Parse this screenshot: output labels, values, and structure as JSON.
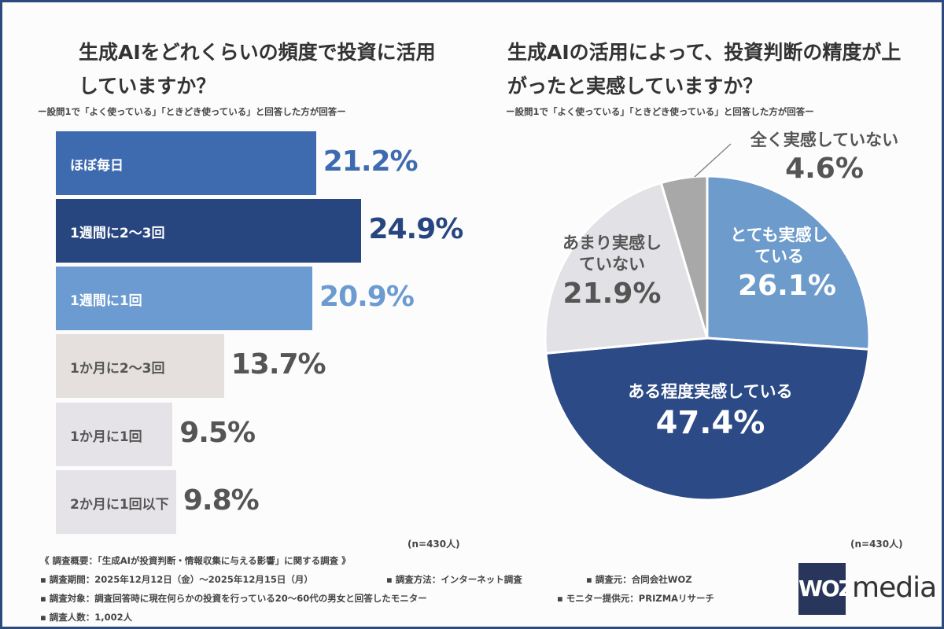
{
  "chart_data": [
    {
      "type": "bar",
      "orientation": "horizontal",
      "title": "生成AIをどれくらいの頻度で投資に活用していますか？",
      "subtitle": "ー設問1で「よく使っている」「ときどき使っている」と回答した方が回答ー",
      "categories": [
        "ほぼ毎日",
        "1週間に2〜3回",
        "1週間に1回",
        "1か月に2〜3回",
        "1か月に1回",
        "2か月に1回以下"
      ],
      "values": [
        21.2,
        24.9,
        20.9,
        13.7,
        9.5,
        9.8
      ],
      "value_labels": [
        "21.2%",
        "24.9%",
        "20.9%",
        "13.7%",
        "9.5%",
        "9.8%"
      ],
      "colors": [
        "#3e6bb0",
        "#27457f",
        "#6b9bd0",
        "#e5e0de",
        "#e6e3e8",
        "#e6e3e8"
      ],
      "label_colors": [
        "#ffffff",
        "#ffffff",
        "#ffffff",
        "#555555",
        "#555555",
        "#555555"
      ],
      "value_colors": [
        "#3e6bb0",
        "#27457f",
        "#6b9bd0",
        "#555555",
        "#555555",
        "#555555"
      ],
      "note": "(n=430人)"
    },
    {
      "type": "pie",
      "title": "生成AIの活用によって、投資判断の精度が上がったと実感していますか？",
      "subtitle": "ー設問1で「よく使っている」「ときどき使っている」と回答した方が回答ー",
      "categories": [
        "とても実感している",
        "ある程度実感している",
        "あまり実感していない",
        "全く実感していない"
      ],
      "values": [
        26.1,
        47.4,
        21.9,
        4.6
      ],
      "value_labels": [
        "26.1%",
        "47.4%",
        "21.9%",
        "4.6%"
      ],
      "colors": [
        "#6d9bcb",
        "#2c4a86",
        "#e2e2e6",
        "#a9a8a8"
      ],
      "note": "(n=430人)"
    }
  ],
  "footer": {
    "summary": "《 調査概要：「生成AIが投資判断・情報収集に与える影響」に関する調査 》",
    "period": "▪ 調査期間：2025年12月12日（金）〜2025年12月15日（月）",
    "method": "▪ 調査方法：インターネット調査",
    "source": "▪ 調査元：合同会社WOZ",
    "target": "▪ 調査対象：調査回答時に現在何らかの投資を行っている20〜60代の男女と回答したモニター",
    "provider": "▪ モニター提供元：PRIZMAリサーチ",
    "count": "▪ 調査人数：1,002人"
  },
  "logo": {
    "box": "WOZ",
    "text": "media"
  }
}
